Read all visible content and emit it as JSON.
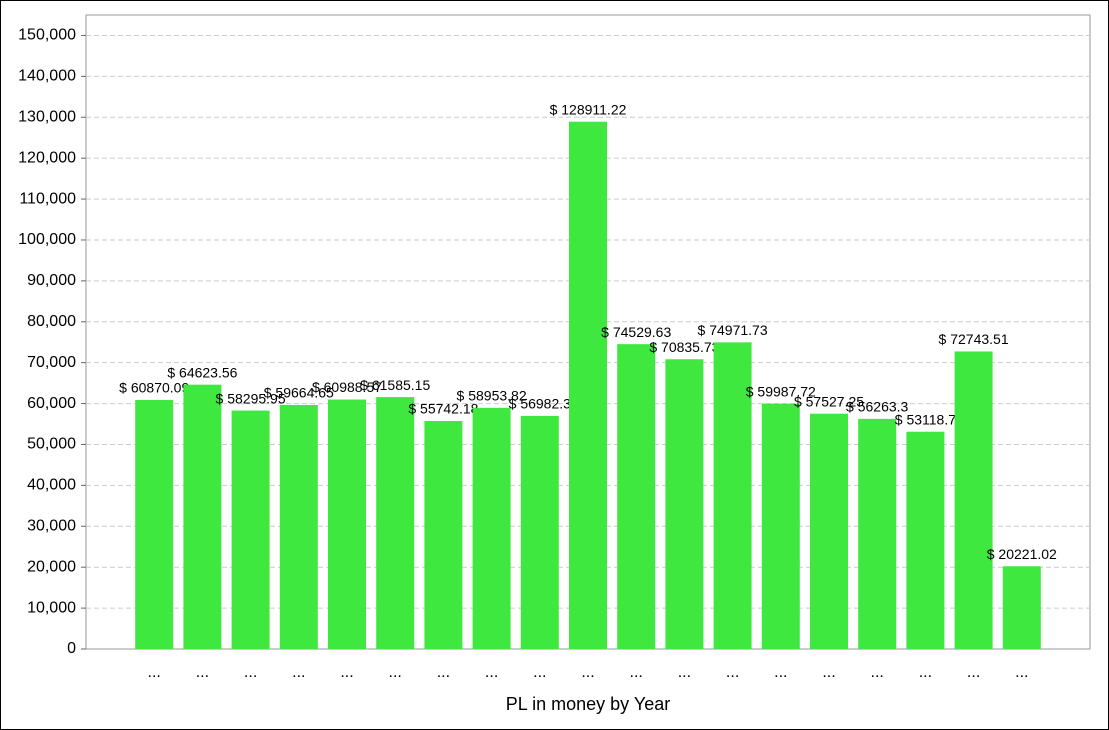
{
  "chart_data": {
    "type": "bar",
    "x_label": "PL in money by Year",
    "categories": [
      "...",
      "...",
      "...",
      "...",
      "...",
      "...",
      "...",
      "...",
      "...",
      "...",
      "...",
      "...",
      "...",
      "...",
      "...",
      "...",
      "...",
      "...",
      "..."
    ],
    "values": [
      60870.09,
      64623.56,
      58295.95,
      59664.65,
      60988.57,
      61585.15,
      55742.18,
      58953.82,
      56982.3,
      128911.22,
      74529.63,
      70835.73,
      74971.73,
      59987.72,
      57527.25,
      56263.3,
      53118.7,
      72743.51,
      20221.02
    ],
    "value_labels": [
      "$ 60870.09",
      "$ 64623.56",
      "$ 58295.95",
      "$ 59664.65",
      "$ 60988.57",
      "$ 61585.15",
      "$ 55742.18",
      "$ 58953.82",
      "$ 56982.3",
      "$ 128911.22",
      "$ 74529.63",
      "$ 70835.73",
      "$ 74971.73",
      "$ 59987.72",
      "$ 57527.25",
      "$ 56263.3",
      "$ 53118.7",
      "$ 72743.51",
      "$ 20221.02"
    ],
    "color": "#3fe83f",
    "ylim": [
      0,
      155000
    ],
    "yticks": [
      0,
      {
        "value": 10000,
        "label": "10,000"
      },
      {
        "value": 20000,
        "label": "20,000"
      },
      {
        "value": 30000,
        "label": "30,000"
      },
      {
        "value": 40000,
        "label": "40,000"
      },
      {
        "value": 50000,
        "label": "50,000"
      },
      {
        "value": 60000,
        "label": "60,000"
      },
      {
        "value": 70000,
        "label": "70,000"
      },
      {
        "value": 80000,
        "label": "80,000"
      },
      {
        "value": 90000,
        "label": "90,000"
      },
      {
        "value": 100000,
        "label": "100,000"
      },
      {
        "value": 110000,
        "label": "110,000"
      },
      {
        "value": 120000,
        "label": "120,000"
      },
      {
        "value": 130000,
        "label": "130,000"
      },
      {
        "value": 140000,
        "label": "140,000"
      },
      {
        "value": 150000,
        "label": "150,000"
      }
    ],
    "grid": true
  }
}
